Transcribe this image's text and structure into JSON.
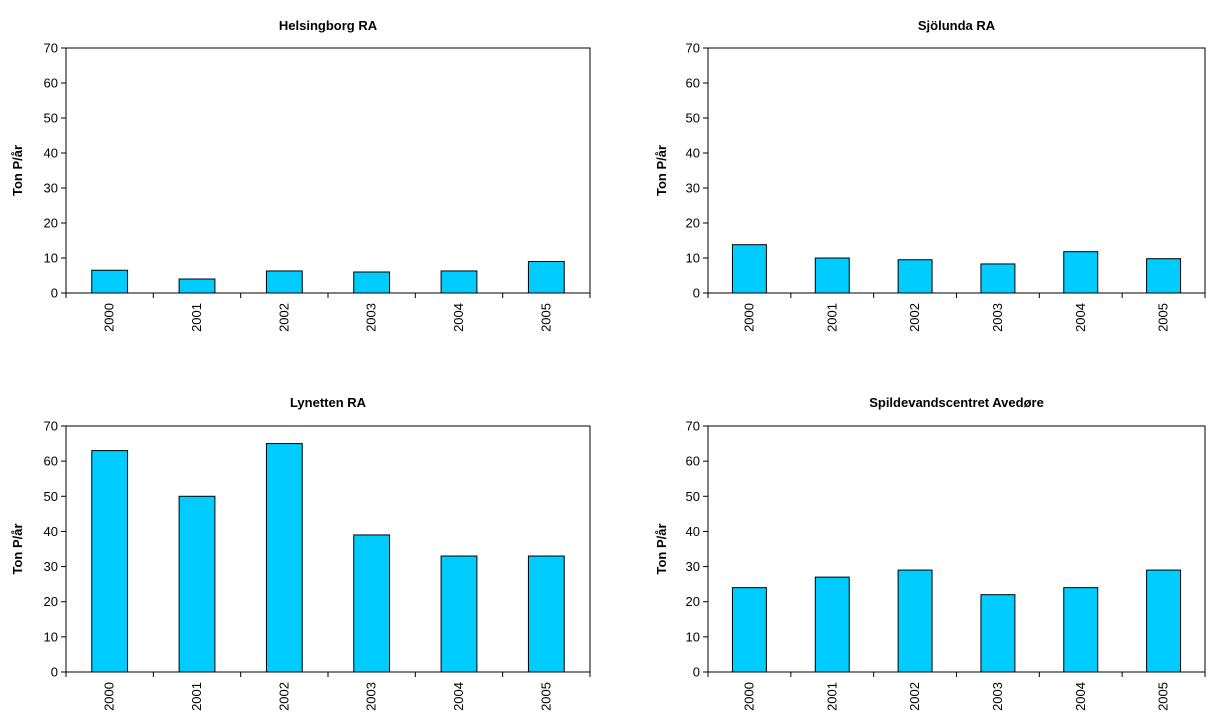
{
  "colors": {
    "bar_fill": "#00ccff",
    "bar_stroke": "#000000",
    "axis": "#000000",
    "plot_border": "#000000"
  },
  "chart_data": [
    {
      "type": "bar",
      "title": "Helsingborg RA",
      "ylabel": "Ton P/år",
      "xlabel": "",
      "categories": [
        "2000",
        "2001",
        "2002",
        "2003",
        "2004",
        "2005"
      ],
      "values": [
        6.5,
        4,
        6.3,
        6,
        6.3,
        9
      ],
      "ylim": [
        0,
        70
      ],
      "yticks": [
        0,
        10,
        20,
        30,
        40,
        50,
        60,
        70
      ],
      "grid": false,
      "legend": "none"
    },
    {
      "type": "bar",
      "title": "Sjölunda RA",
      "ylabel": "Ton P/år",
      "xlabel": "",
      "categories": [
        "2000",
        "2001",
        "2002",
        "2003",
        "2004",
        "2005"
      ],
      "values": [
        13.8,
        10,
        9.5,
        8.3,
        11.8,
        9.8
      ],
      "ylim": [
        0,
        70
      ],
      "yticks": [
        0,
        10,
        20,
        30,
        40,
        50,
        60,
        70
      ],
      "grid": false,
      "legend": "none"
    },
    {
      "type": "bar",
      "title": "Lynetten RA",
      "ylabel": "Ton P/år",
      "xlabel": "",
      "categories": [
        "2000",
        "2001",
        "2002",
        "2003",
        "2004",
        "2005"
      ],
      "values": [
        63,
        50,
        65,
        39,
        33,
        33
      ],
      "ylim": [
        0,
        70
      ],
      "yticks": [
        0,
        10,
        20,
        30,
        40,
        50,
        60,
        70
      ],
      "grid": false,
      "legend": "none"
    },
    {
      "type": "bar",
      "title": "Spildevandscentret Avedøre",
      "ylabel": "Ton P/år",
      "xlabel": "",
      "categories": [
        "2000",
        "2001",
        "2002",
        "2003",
        "2004",
        "2005"
      ],
      "values": [
        24,
        27,
        29,
        22,
        24,
        29
      ],
      "ylim": [
        0,
        70
      ],
      "yticks": [
        0,
        10,
        20,
        30,
        40,
        50,
        60,
        70
      ],
      "grid": false,
      "legend": "none"
    }
  ]
}
